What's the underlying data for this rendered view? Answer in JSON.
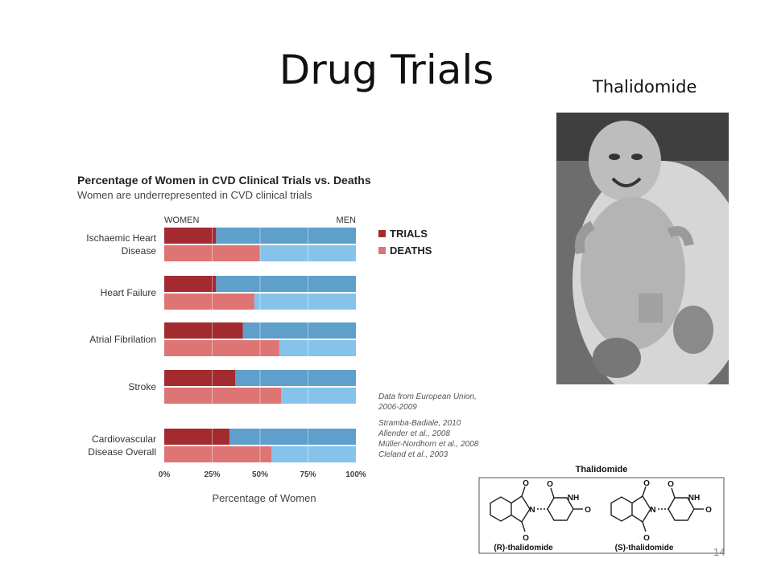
{
  "slide": {
    "title": "Drug Trials",
    "photo_caption": "Thalidomide",
    "page_number": "14"
  },
  "chart_data": {
    "type": "bar",
    "title": "Percentage of Women in CVD Clinical Trials vs. Deaths",
    "subtitle": "Women are underrepresented in CVD clinical trials",
    "left_header": "WOMEN",
    "right_header": "MEN",
    "categories": [
      "Ischaemic Heart Disease",
      "Heart Failure",
      "Atrial Fibrilation",
      "Stroke",
      "Cardiovascular Disease Overall"
    ],
    "category_lines": [
      [
        "Ischaemic Heart",
        "Disease"
      ],
      [
        "Heart Failure"
      ],
      [
        "Atrial Fibrilation"
      ],
      [
        "Stroke"
      ],
      [
        "Cardiovascular",
        "Disease Overall"
      ]
    ],
    "series": [
      {
        "name": "TRIALS",
        "values": [
          27,
          27,
          41,
          37,
          34
        ]
      },
      {
        "name": "DEATHS",
        "values": [
          50,
          47,
          60,
          61,
          56
        ]
      }
    ],
    "xlabel": "Percentage of Women",
    "xticks": [
      "0%",
      "25%",
      "50%",
      "75%",
      "100%"
    ],
    "xlim": [
      0,
      100
    ],
    "legend_position": "top-right",
    "source_note": [
      "Data from European Union,",
      "2006-2009"
    ],
    "references": [
      "Stramba-Badiale, 2010",
      "Allender et al., 2008",
      "Müller-Nordhorn et al., 2008",
      "Cleland et al., 2003"
    ],
    "colors": {
      "trials_women": "#a32a2e",
      "deaths_women": "#de7474",
      "trials_men": "#5e9fcb",
      "deaths_men": "#85c3ea",
      "legend_trials": "#a32a2e",
      "legend_deaths": "#de7474"
    }
  },
  "structure": {
    "title": "Thalidomide",
    "left_label": "(R)-thalidomide",
    "right_label": "(S)-thalidomide",
    "atom_n": "N",
    "atom_nh": "NH",
    "atom_o": "O"
  }
}
